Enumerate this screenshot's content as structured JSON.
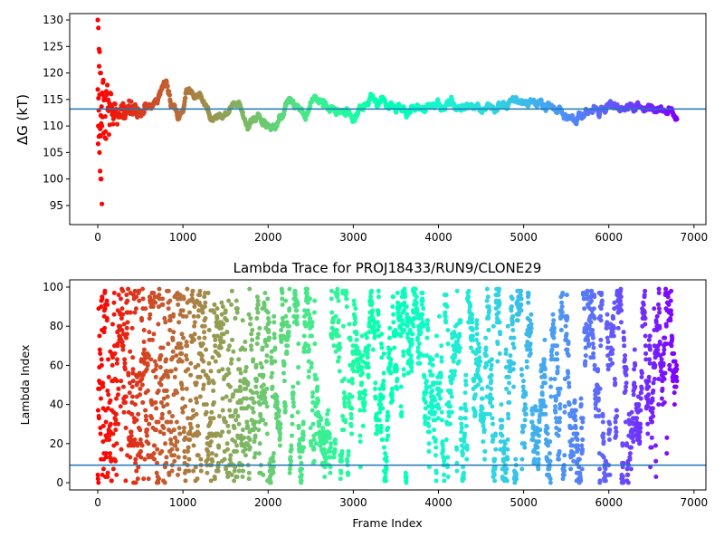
{
  "chart_data": [
    {
      "type": "scatter",
      "title": "",
      "xlabel": "",
      "ylabel": "ΔG (kT)",
      "xlim": [
        -330,
        7140
      ],
      "ylim": [
        91.4,
        131.2
      ],
      "xticks": [
        0,
        1000,
        2000,
        3000,
        4000,
        5000,
        6000,
        7000
      ],
      "yticks": [
        95,
        100,
        105,
        110,
        115,
        120,
        125,
        130
      ],
      "hline": 113.2,
      "hline_color": "#1f77b4",
      "colormap": "rainbow (red at frame 0 to violet at last frame)",
      "n_frames": 6800,
      "trace_keypoints": [
        [
          0,
          113
        ],
        [
          500,
          113
        ],
        [
          800,
          117.5
        ],
        [
          950,
          110.5
        ],
        [
          1050,
          116.5
        ],
        [
          1200,
          115
        ],
        [
          1350,
          111
        ],
        [
          1500,
          113
        ],
        [
          1650,
          114
        ],
        [
          1750,
          109.5
        ],
        [
          1900,
          111
        ],
        [
          2000,
          110
        ],
        [
          2100,
          111.5
        ],
        [
          2250,
          114.5
        ],
        [
          2450,
          112
        ],
        [
          2600,
          115
        ],
        [
          2800,
          112
        ],
        [
          3000,
          112
        ],
        [
          3200,
          115
        ],
        [
          3400,
          114
        ],
        [
          3600,
          113
        ],
        [
          4000,
          113.5
        ],
        [
          4300,
          114
        ],
        [
          4600,
          113
        ],
        [
          5000,
          115
        ],
        [
          5300,
          113.5
        ],
        [
          5500,
          113
        ],
        [
          5600,
          111
        ],
        [
          5800,
          113
        ],
        [
          6050,
          114.5
        ],
        [
          6200,
          113
        ],
        [
          6500,
          113.5
        ],
        [
          6800,
          111.8
        ]
      ],
      "early_outliers": [
        130,
        128.5,
        124.5,
        124,
        120,
        120,
        116,
        110,
        110,
        108,
        105,
        101.5,
        100,
        100,
        95.3
      ]
    },
    {
      "type": "scatter",
      "title": "Lambda Trace for PROJ18433/RUN9/CLONE29",
      "xlabel": "Frame Index",
      "ylabel": "Lambda Index",
      "xlim": [
        -330,
        7140
      ],
      "ylim": [
        -3.7,
        103.7
      ],
      "xticks": [
        0,
        1000,
        2000,
        3000,
        4000,
        5000,
        6000,
        7000
      ],
      "yticks": [
        0,
        20,
        40,
        60,
        80,
        100
      ],
      "hline": 9,
      "hline_color": "#1f77b4",
      "lambda_range": [
        0,
        99
      ],
      "n_frames": 6800,
      "sample_step": 2,
      "seed": 18433
    }
  ]
}
